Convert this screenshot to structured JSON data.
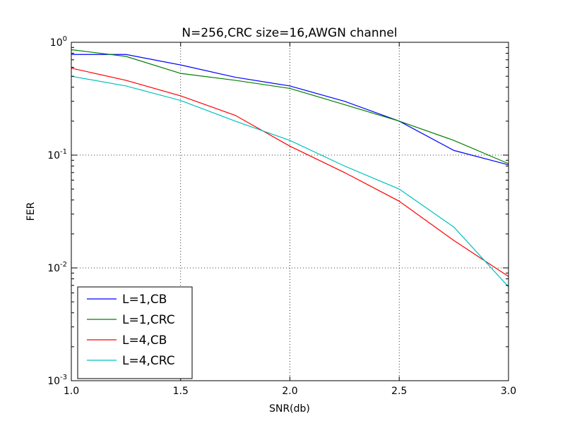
{
  "chart_data": {
    "type": "line",
    "title": "N=256,CRC size=16,AWGN channel",
    "xlabel": "SNR(db)",
    "ylabel": "FER",
    "xlim": [
      1.0,
      3.0
    ],
    "ylim": [
      0.001,
      1
    ],
    "yscale": "log",
    "grid": true,
    "legend_position": "lower-left",
    "x_ticks": [
      {
        "value": 1.0,
        "label": "1.0"
      },
      {
        "value": 1.5,
        "label": "1.5"
      },
      {
        "value": 2.0,
        "label": "2.0"
      },
      {
        "value": 2.5,
        "label": "2.5"
      },
      {
        "value": 3.0,
        "label": "3.0"
      }
    ],
    "y_ticks": [
      {
        "value": 1,
        "base": "10",
        "exp": "0"
      },
      {
        "value": 0.1,
        "base": "10",
        "exp": "-1"
      },
      {
        "value": 0.01,
        "base": "10",
        "exp": "-2"
      },
      {
        "value": 0.001,
        "base": "10",
        "exp": "-3"
      }
    ],
    "x": [
      1.0,
      1.25,
      1.5,
      1.75,
      2.0,
      2.25,
      2.5,
      2.75,
      3.0
    ],
    "series": [
      {
        "name": "L=1,CB",
        "color": "#0000ff",
        "values": [
          0.78,
          0.78,
          0.63,
          0.49,
          0.41,
          0.3,
          0.2,
          0.11,
          0.082
        ]
      },
      {
        "name": "L=1,CRC",
        "color": "#008000",
        "values": [
          0.86,
          0.75,
          0.53,
          0.46,
          0.39,
          0.28,
          0.2,
          0.135,
          0.084
        ]
      },
      {
        "name": "L=4,CB",
        "color": "#ff0000",
        "values": [
          0.59,
          0.46,
          0.335,
          0.225,
          0.12,
          0.07,
          0.039,
          0.0175,
          0.0084
        ]
      },
      {
        "name": "L=4,CRC",
        "color": "#00bfbf",
        "values": [
          0.5,
          0.41,
          0.305,
          0.2,
          0.135,
          0.08,
          0.05,
          0.023,
          0.0068
        ]
      }
    ]
  }
}
